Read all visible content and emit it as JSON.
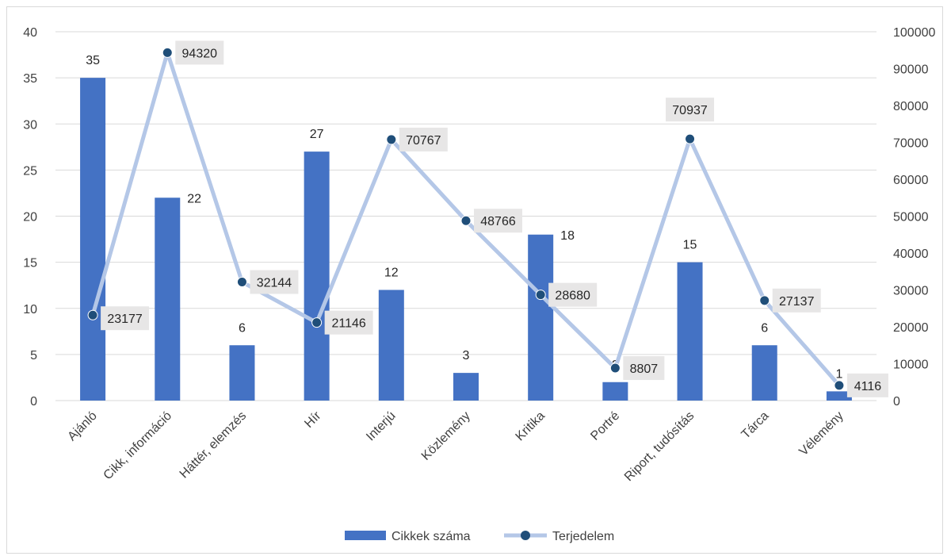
{
  "chart_data": {
    "type": "bar",
    "categories": [
      "Ajánló",
      "Cikk, információ",
      "Háttér, elemzés",
      "Hír",
      "Interjú",
      "Közlemény",
      "Kritika",
      "Portré",
      "Riport, tudósítás",
      "Tárca",
      "Vélemény"
    ],
    "series": [
      {
        "name": "Cikkek száma",
        "type": "bar",
        "axis": "left",
        "color": "#4472C4",
        "values": [
          35,
          22,
          6,
          27,
          12,
          3,
          18,
          2,
          15,
          6,
          1
        ]
      },
      {
        "name": "Terjedelem",
        "type": "line",
        "axis": "right",
        "color": "#B4C7E7",
        "marker_color": "#1F4E79",
        "values": [
          23177,
          94320,
          32144,
          21146,
          70767,
          48766,
          28680,
          8807,
          70937,
          27137,
          4116
        ]
      }
    ],
    "ylim": [
      0,
      40
    ],
    "y_ticks": [
      "0",
      "5",
      "10",
      "15",
      "20",
      "25",
      "30",
      "35",
      "40"
    ],
    "y2lim": [
      0,
      100000
    ],
    "y2_ticks": [
      "0",
      "10000",
      "20000",
      "30000",
      "40000",
      "50000",
      "60000",
      "70000",
      "80000",
      "90000",
      "100000"
    ],
    "grid": true,
    "legend": "bottom"
  }
}
